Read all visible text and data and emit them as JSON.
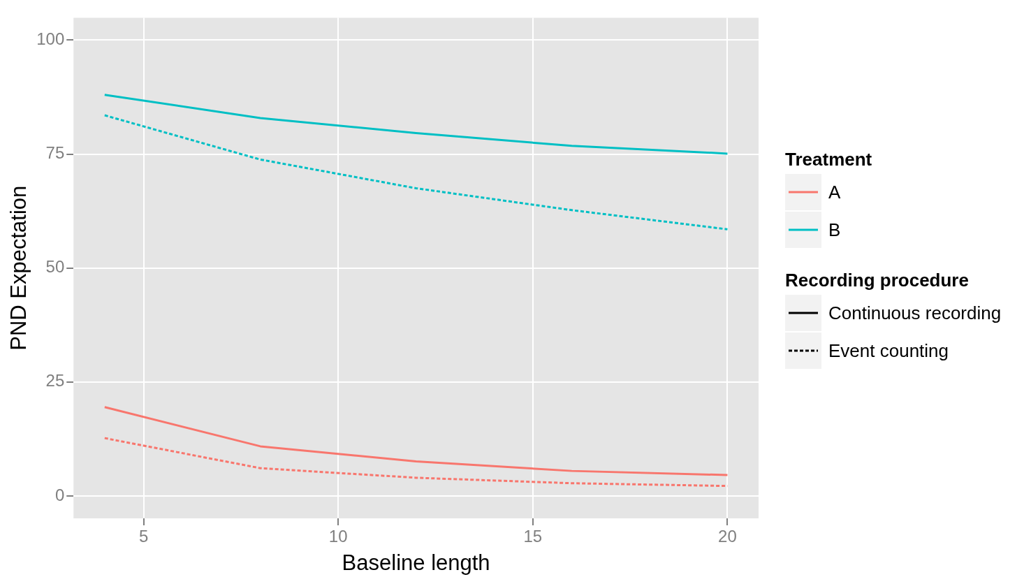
{
  "chart_data": {
    "type": "line",
    "xlabel": "Baseline length",
    "ylabel": "PND Expectation",
    "x": [
      4,
      8,
      12,
      16,
      20
    ],
    "xlim": [
      3.2,
      20.8
    ],
    "xticks": [
      5,
      10,
      15,
      20
    ],
    "ylim": [
      -4.9,
      104.9
    ],
    "yticks": [
      0,
      25,
      50,
      75,
      100
    ],
    "grid": true,
    "legend": "right",
    "legend_title": [
      "Treatment",
      "Recording procedure"
    ],
    "annotations": [
      "Continuous recording",
      "Event counting"
    ],
    "series": [
      {
        "name": "A",
        "color": "#f8766d",
        "line_style": "solid",
        "values": [
          19.5,
          10.9,
          7.6,
          5.5,
          4.6
        ]
      },
      {
        "color": "#f8766d",
        "line_style": "dashed",
        "values": [
          12.7,
          6.1,
          4.0,
          2.8,
          2.2
        ]
      },
      {
        "name": "B",
        "color": "#00bfc4",
        "line_style": "solid",
        "values": [
          88.0,
          82.9,
          79.6,
          76.8,
          75.1
        ]
      },
      {
        "color": "#00bfc4",
        "line_style": "dashed",
        "values": [
          83.5,
          73.8,
          67.5,
          62.7,
          58.5
        ]
      }
    ]
  }
}
